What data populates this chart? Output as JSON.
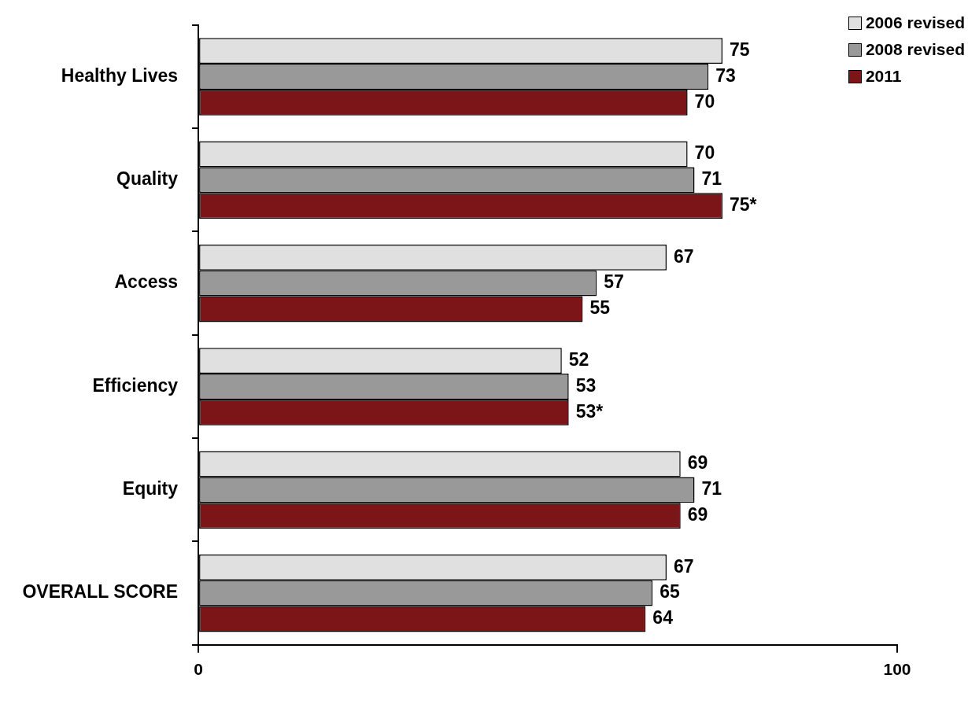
{
  "chart_data": {
    "type": "bar",
    "orientation": "horizontal",
    "categories": [
      "Healthy Lives",
      "Quality",
      "Access",
      "Efficiency",
      "Equity",
      "OVERALL SCORE"
    ],
    "series": [
      {
        "name": "2006 revised",
        "color": "#e0e0e0",
        "values": [
          75,
          70,
          67,
          52,
          69,
          67
        ],
        "value_labels": [
          "75",
          "70",
          "67",
          "52",
          "69",
          "67"
        ]
      },
      {
        "name": "2008 revised",
        "color": "#999999",
        "values": [
          73,
          71,
          57,
          53,
          71,
          65
        ],
        "value_labels": [
          "73",
          "71",
          "57",
          "53",
          "71",
          "65"
        ]
      },
      {
        "name": "2011",
        "color": "#7b1518",
        "values": [
          70,
          75,
          55,
          53,
          69,
          64
        ],
        "value_labels": [
          "70",
          "75*",
          "55",
          "53*",
          "69",
          "64"
        ]
      }
    ],
    "xlim": [
      0,
      100
    ],
    "xticks": [
      0,
      100
    ],
    "grid": false,
    "legend": "top right"
  }
}
